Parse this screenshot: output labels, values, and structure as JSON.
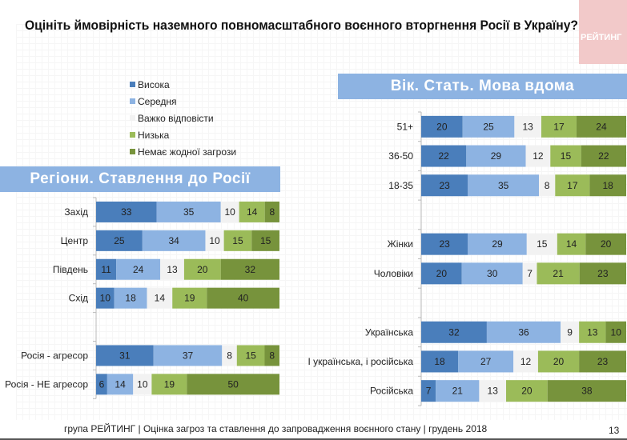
{
  "title": "Оцініть ймовірність наземного повномасштабного воєнного вторгнення Росії в Україну?",
  "logo_text": "РЕЙТИНГ",
  "left_header": "Регіони. Ставлення до Росії",
  "right_header": "Вік. Стать. Мова вдома",
  "footer": "група РЕЙТИНГ | Оцінка загроз та ставлення до запровадження воєнного стану | грудень 2018",
  "page_number": "13",
  "legend": [
    {
      "label": "Висока",
      "color": "#4a7ebb"
    },
    {
      "label": "Середня",
      "color": "#8db3e2"
    },
    {
      "label": "Важко відповісти",
      "color": "#f2f2f2"
    },
    {
      "label": "Низька",
      "color": "#9bbb59"
    },
    {
      "label": "Немає жодної загрози",
      "color": "#77933c"
    }
  ],
  "chart_data": [
    {
      "type": "bar",
      "orientation": "horizontal",
      "stacked": "percent",
      "categories": [
        "Захід",
        "Центр",
        "Південь",
        "Схід",
        "",
        "Росія - агресор",
        "Росія - НЕ агресор"
      ],
      "series": [
        {
          "name": "Висока",
          "values": [
            33,
            25,
            11,
            10,
            null,
            31,
            6
          ]
        },
        {
          "name": "Середня",
          "values": [
            35,
            34,
            24,
            18,
            null,
            37,
            14
          ]
        },
        {
          "name": "Важко відповісти",
          "values": [
            10,
            10,
            13,
            14,
            null,
            8,
            10
          ]
        },
        {
          "name": "Низька",
          "values": [
            14,
            15,
            20,
            19,
            null,
            15,
            19
          ]
        },
        {
          "name": "Немає жодної загрози",
          "values": [
            8,
            15,
            32,
            40,
            null,
            8,
            50
          ]
        }
      ]
    },
    {
      "type": "bar",
      "orientation": "horizontal",
      "stacked": "percent",
      "categories": [
        "51+",
        "36-50",
        "18-35",
        "",
        "Жінки",
        "Чоловіки",
        "",
        "Українська",
        "І українська, і російська",
        "Російська"
      ],
      "series": [
        {
          "name": "Висока",
          "values": [
            20,
            22,
            23,
            null,
            23,
            20,
            null,
            32,
            18,
            7
          ]
        },
        {
          "name": "Середня",
          "values": [
            25,
            29,
            35,
            null,
            29,
            30,
            null,
            36,
            27,
            21
          ]
        },
        {
          "name": "Важко відповісти",
          "values": [
            13,
            12,
            8,
            null,
            15,
            7,
            null,
            9,
            12,
            13
          ]
        },
        {
          "name": "Низька",
          "values": [
            17,
            15,
            17,
            null,
            14,
            21,
            null,
            13,
            20,
            20
          ]
        },
        {
          "name": "Немає жодної загрози",
          "values": [
            24,
            22,
            18,
            null,
            20,
            23,
            null,
            10,
            23,
            38
          ]
        }
      ]
    }
  ]
}
